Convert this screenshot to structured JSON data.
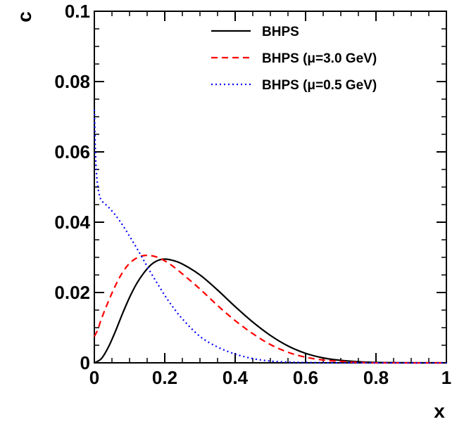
{
  "chart_data": {
    "type": "line",
    "xlabel": "x",
    "ylabel": "c",
    "xlim": [
      0,
      1
    ],
    "ylim": [
      0,
      0.1
    ],
    "x_ticks": [
      "0",
      "0.2",
      "0.4",
      "0.6",
      "0.8",
      "1"
    ],
    "y_ticks": [
      "0",
      "0.02",
      "0.04",
      "0.06",
      "0.08",
      "0.1"
    ],
    "legend_position": "top-right",
    "series": [
      {
        "name": "BHPS",
        "color": "#000000",
        "style": "solid",
        "x": [
          0,
          0.02,
          0.04,
          0.06,
          0.08,
          0.1,
          0.12,
          0.14,
          0.16,
          0.18,
          0.2,
          0.22,
          0.25,
          0.3,
          0.35,
          0.4,
          0.45,
          0.5,
          0.55,
          0.6,
          0.65,
          0.7,
          0.75,
          0.8,
          0.9,
          1.0
        ],
        "y": [
          0,
          0.0012,
          0.0045,
          0.009,
          0.014,
          0.0186,
          0.0225,
          0.0255,
          0.0278,
          0.0291,
          0.0295,
          0.0292,
          0.0281,
          0.025,
          0.0207,
          0.016,
          0.0116,
          0.0078,
          0.0048,
          0.0027,
          0.0014,
          0.0007,
          0.0003,
          0.0001,
          0.0,
          0.0
        ]
      },
      {
        "name": "BHPS (μ=3.0 GeV)",
        "color": "#ff0000",
        "style": "dashed",
        "x": [
          0,
          0.01,
          0.02,
          0.04,
          0.06,
          0.08,
          0.1,
          0.12,
          0.14,
          0.16,
          0.18,
          0.2,
          0.22,
          0.25,
          0.3,
          0.35,
          0.4,
          0.45,
          0.5,
          0.55,
          0.6,
          0.65,
          0.7,
          0.75,
          0.8,
          0.9,
          1.0
        ],
        "y": [
          0.0075,
          0.0095,
          0.0125,
          0.0175,
          0.022,
          0.0257,
          0.0283,
          0.0298,
          0.0305,
          0.0305,
          0.03,
          0.029,
          0.0277,
          0.0253,
          0.021,
          0.0163,
          0.012,
          0.0083,
          0.0052,
          0.003,
          0.0016,
          0.0008,
          0.0004,
          0.0001,
          0.0,
          0.0,
          0.0
        ]
      },
      {
        "name": "BHPS (μ=0.5 GeV)",
        "color": "#0000ff",
        "style": "dotted",
        "x": [
          0,
          0.003,
          0.006,
          0.01,
          0.015,
          0.02,
          0.03,
          0.04,
          0.06,
          0.08,
          0.1,
          0.12,
          0.14,
          0.16,
          0.18,
          0.2,
          0.22,
          0.25,
          0.3,
          0.35,
          0.4,
          0.45,
          0.5,
          0.55,
          0.6,
          0.7,
          0.8,
          0.9,
          1.0
        ],
        "y": [
          0.072,
          0.06,
          0.054,
          0.05,
          0.0475,
          0.0462,
          0.0452,
          0.0443,
          0.042,
          0.0392,
          0.036,
          0.0327,
          0.0292,
          0.0257,
          0.0224,
          0.0192,
          0.0163,
          0.0125,
          0.0075,
          0.0045,
          0.0025,
          0.0012,
          0.0005,
          0.0002,
          0.0001,
          0.0,
          0.0,
          0.0,
          0.0
        ]
      }
    ]
  }
}
